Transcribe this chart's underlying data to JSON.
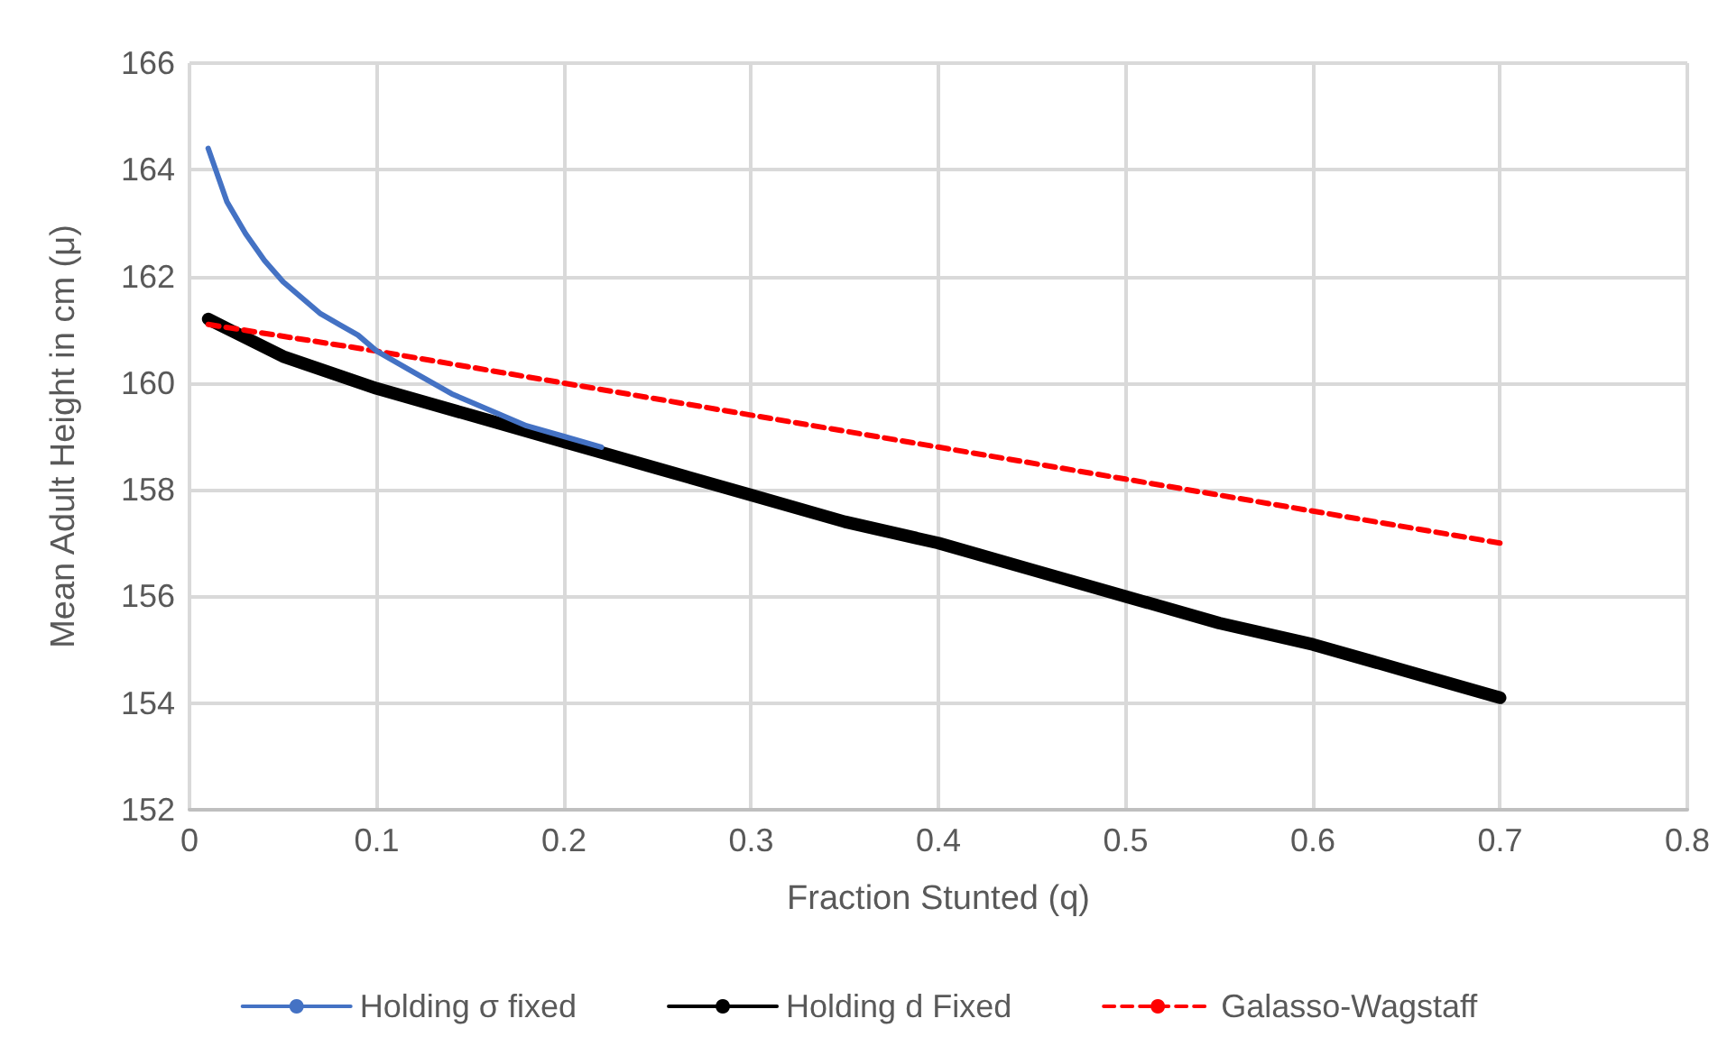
{
  "chart_data": {
    "type": "line",
    "xlabel": "Fraction Stunted (q)",
    "ylabel": "Mean Adult Height in cm (μ)",
    "xlim": [
      0,
      0.8
    ],
    "xticks": [
      0,
      0.1,
      0.2,
      0.3,
      0.4,
      0.5,
      0.6,
      0.7,
      0.8
    ],
    "ylim": [
      152,
      166
    ],
    "yticks": [
      152,
      154,
      156,
      158,
      160,
      162,
      164,
      166
    ],
    "grid": true,
    "legend": "bottom",
    "marker": "none",
    "series": [
      {
        "name": "Holding σ fixed",
        "color": "#4472c4",
        "line_style": "solid",
        "x": [
          0.01,
          0.02,
          0.03,
          0.04,
          0.05,
          0.06,
          0.07,
          0.08,
          0.09,
          0.1,
          0.12,
          0.14,
          0.16,
          0.18,
          0.2,
          0.22
        ],
        "values": [
          164.4,
          163.4,
          162.8,
          162.3,
          161.9,
          161.6,
          161.3,
          161.1,
          160.9,
          160.6,
          160.2,
          159.8,
          159.5,
          159.2,
          159.0,
          158.8
        ]
      },
      {
        "name": "Holding d Fixed",
        "color": "#000000",
        "line_style": "solid",
        "x": [
          0.01,
          0.05,
          0.1,
          0.15,
          0.2,
          0.25,
          0.3,
          0.35,
          0.4,
          0.45,
          0.5,
          0.55,
          0.6,
          0.65,
          0.7
        ],
        "values": [
          161.2,
          160.5,
          159.9,
          159.4,
          158.9,
          158.4,
          157.9,
          157.4,
          157.0,
          156.5,
          156.0,
          155.5,
          155.1,
          154.6,
          154.1
        ]
      },
      {
        "name": "Galasso-Wagstaff",
        "color": "#ff0000",
        "line_style": "dashed",
        "x": [
          0.01,
          0.1,
          0.2,
          0.3,
          0.4,
          0.5,
          0.6,
          0.7
        ],
        "values": [
          161.1,
          160.6,
          160.0,
          159.4,
          158.8,
          158.2,
          157.6,
          157.0
        ]
      }
    ]
  }
}
